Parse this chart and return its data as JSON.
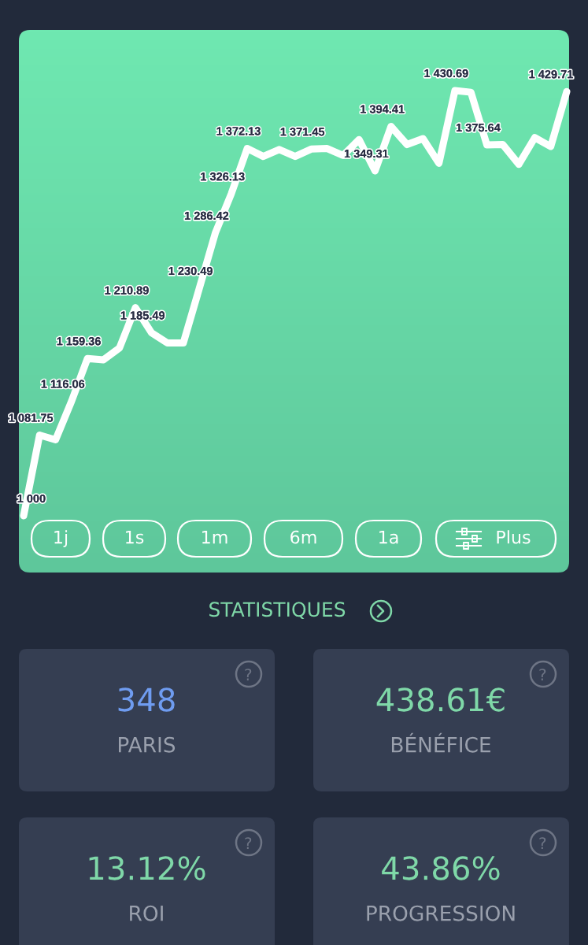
{
  "chart_data": [
    {
      "type": "line",
      "color": "#ffffff",
      "categories": [
        null,
        null,
        null,
        null,
        null,
        null,
        null,
        null,
        null,
        null,
        null,
        null,
        null,
        null,
        null,
        null,
        null,
        null,
        null,
        null,
        null,
        null,
        null,
        null,
        null,
        null,
        null,
        null,
        null,
        null,
        null,
        null,
        null,
        null,
        null
      ],
      "values": [
        1000,
        1081.75,
        1077,
        1116.06,
        1159.36,
        1158,
        1170,
        1210.89,
        1185.49,
        1175,
        1175,
        1230.49,
        1286.42,
        1326.13,
        1372.13,
        1364,
        1371,
        1364,
        1371.45,
        1372,
        1365,
        1381,
        1349.31,
        1394.41,
        1376,
        1382,
        1357,
        1430.69,
        1429,
        1375.64,
        1376,
        1356,
        1383,
        1374,
        1429.71
      ],
      "value_labels": [
        "1 000",
        "1 081.75",
        null,
        "1 116.06",
        "1 159.36",
        null,
        null,
        "1 210.89",
        "1 185.49",
        null,
        null,
        "1 230.49",
        "1 286.42",
        "1 326.13",
        "1 372.13",
        null,
        null,
        null,
        "1 371.45",
        null,
        null,
        null,
        "1 349.31",
        "1 394.41",
        null,
        null,
        null,
        "1 430.69",
        null,
        "1 375.64",
        null,
        null,
        null,
        null,
        "1 429.71"
      ],
      "annotations": [
        "1j",
        "1s",
        "1m",
        "6m",
        "1a",
        "Plus"
      ]
    },
    {
      "type": "other",
      "title": "STATISTIQUES",
      "annotations": [
        "348",
        "PARIS",
        "438.61€",
        "BÉNÉFICE",
        "13.12%",
        "ROI",
        "43.86%",
        "PROGRESSION"
      ],
      "colors": [
        "#6f9cf0",
        "#9aa0ad",
        "#7fd8a8",
        "#9aa0ad",
        "#7fd8a8",
        "#9aa0ad",
        "#7fd8a8",
        "#9aa0ad"
      ]
    }
  ]
}
